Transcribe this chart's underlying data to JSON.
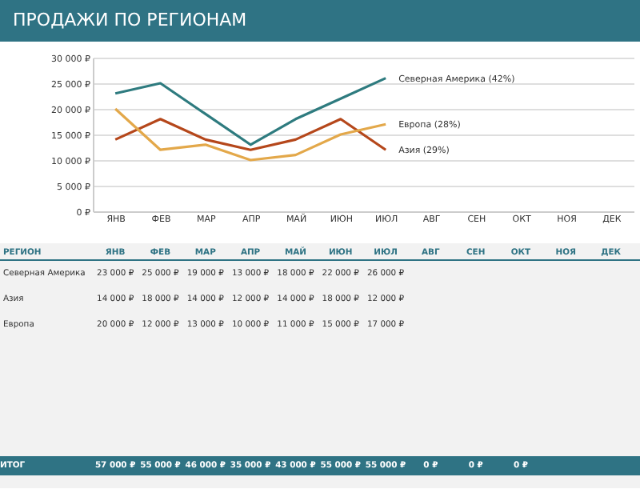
{
  "chart_data": {
    "type": "line",
    "title": "ПРОДАЖИ ПО РЕГИОНАМ",
    "categories": [
      "ЯНВ",
      "ФЕВ",
      "МАР",
      "АПР",
      "МАЙ",
      "ИЮН",
      "ИЮЛ",
      "АВГ",
      "СЕН",
      "ОКТ",
      "НОЯ",
      "ДЕК"
    ],
    "series": [
      {
        "name": "Северная Америка (42%)",
        "color": "#2e7b7f",
        "values": [
          23000,
          25000,
          19000,
          13000,
          18000,
          22000,
          26000,
          null,
          null,
          null,
          null,
          null
        ],
        "value_labels": [
          "23 000 ₽",
          "25 000 ₽",
          "19 000 ₽",
          "13 000 ₽",
          "18 000 ₽",
          "22 000 ₽",
          "26 000 ₽",
          null,
          null,
          null,
          null,
          null
        ]
      },
      {
        "name": "Азия (29%)",
        "color": "#b5471b",
        "values": [
          14000,
          18000,
          14000,
          12000,
          14000,
          18000,
          12000,
          null,
          null,
          null,
          null,
          null
        ],
        "value_labels": [
          "14 000 ₽",
          "18 000 ₽",
          "14 000 ₽",
          "12 000 ₽",
          "14 000 ₽",
          "18 000 ₽",
          "12 000 ₽",
          null,
          null,
          null,
          null,
          null
        ]
      },
      {
        "name": "Европа (28%)",
        "color": "#e3a84a",
        "values": [
          20000,
          12000,
          13000,
          10000,
          11000,
          15000,
          17000,
          null,
          null,
          null,
          null,
          null
        ],
        "value_labels": [
          "20 000 ₽",
          "12 000 ₽",
          "13 000 ₽",
          "10 000 ₽",
          "11 000 ₽",
          "15 000 ₽",
          "17 000 ₽",
          null,
          null,
          null,
          null,
          null
        ]
      }
    ],
    "totals": [
      "57 000 ₽",
      "55 000 ₽",
      "46 000 ₽",
      "35 000 ₽",
      "43 000 ₽",
      "55 000 ₽",
      "55 000 ₽",
      "0 ₽",
      "0 ₽",
      "0 ₽",
      null,
      null
    ],
    "annotations": [
      "РЕГИОН",
      "ИТОГ",
      "Северная Америка",
      "Азия",
      "Европа"
    ],
    "ylim": [
      0,
      30000
    ],
    "yticks": [
      {
        "value": 0,
        "label": "0 ₽"
      },
      {
        "value": 5000,
        "label": "5 000 ₽"
      },
      {
        "value": 10000,
        "label": "10 000 ₽"
      },
      {
        "value": 15000,
        "label": "15 000 ₽"
      },
      {
        "value": 20000,
        "label": "20 000 ₽"
      },
      {
        "value": 25000,
        "label": "25 000 ₽"
      },
      {
        "value": 30000,
        "label": "30 000 ₽"
      }
    ],
    "grid": "y",
    "marker": "none",
    "line_style": "solid"
  }
}
